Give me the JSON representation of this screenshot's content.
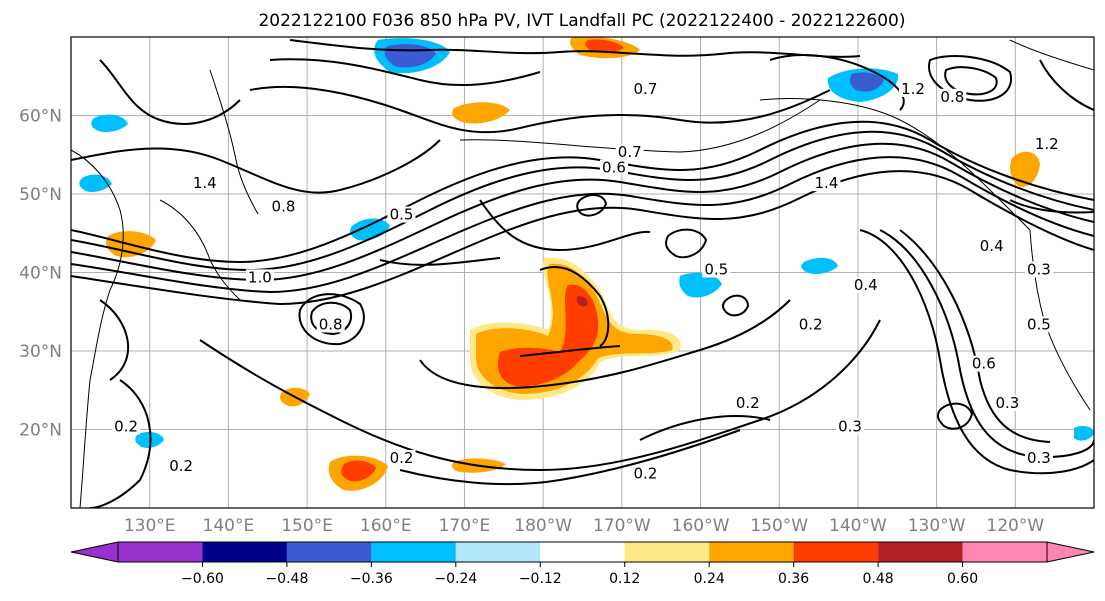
{
  "title": "2022122100 F036 850 hPa PV, IVT Landfall PC (2022122400 - 2022122600)",
  "map": {
    "lon_range": [
      120,
      250
    ],
    "lat_range": [
      10,
      70
    ],
    "lon_ticks": [
      {
        "value": 130,
        "label": "130°E"
      },
      {
        "value": 140,
        "label": "140°E"
      },
      {
        "value": 150,
        "label": "150°E"
      },
      {
        "value": 160,
        "label": "160°E"
      },
      {
        "value": 170,
        "label": "170°E"
      },
      {
        "value": 180,
        "label": "180°W"
      },
      {
        "value": 190,
        "label": "170°W"
      },
      {
        "value": 200,
        "label": "160°W"
      },
      {
        "value": 210,
        "label": "150°W"
      },
      {
        "value": 220,
        "label": "140°W"
      },
      {
        "value": 230,
        "label": "130°W"
      },
      {
        "value": 240,
        "label": "120°W"
      }
    ],
    "lat_ticks": [
      {
        "value": 20,
        "label": "20°N"
      },
      {
        "value": 30,
        "label": "30°N"
      },
      {
        "value": 40,
        "label": "40°N"
      },
      {
        "value": 50,
        "label": "50°N"
      },
      {
        "value": 60,
        "label": "60°N"
      }
    ],
    "grid": true,
    "contour_labels": [
      {
        "lon": 137,
        "lat": 51,
        "text": "1.4"
      },
      {
        "lon": 147,
        "lat": 48,
        "text": "0.8"
      },
      {
        "lon": 162,
        "lat": 47,
        "text": "0.5"
      },
      {
        "lon": 144,
        "lat": 39,
        "text": "1.0"
      },
      {
        "lon": 153,
        "lat": 33,
        "text": "0.8"
      },
      {
        "lon": 193,
        "lat": 63,
        "text": "0.7"
      },
      {
        "lon": 191,
        "lat": 55,
        "text": "0.7"
      },
      {
        "lon": 189,
        "lat": 53,
        "text": "0.6"
      },
      {
        "lon": 216,
        "lat": 51,
        "text": "1.4"
      },
      {
        "lon": 202,
        "lat": 40,
        "text": "0.5"
      },
      {
        "lon": 221,
        "lat": 38,
        "text": "0.4"
      },
      {
        "lon": 214,
        "lat": 33,
        "text": "0.2"
      },
      {
        "lon": 206,
        "lat": 23,
        "text": "0.2"
      },
      {
        "lon": 219,
        "lat": 20,
        "text": "0.3"
      },
      {
        "lon": 193,
        "lat": 14,
        "text": "0.2"
      },
      {
        "lon": 162,
        "lat": 16,
        "text": "0.2"
      },
      {
        "lon": 134,
        "lat": 15,
        "text": "0.2"
      },
      {
        "lon": 127,
        "lat": 20,
        "text": "0.2"
      },
      {
        "lon": 227,
        "lat": 63,
        "text": "1.2"
      },
      {
        "lon": 232,
        "lat": 62,
        "text": "0.8"
      },
      {
        "lon": 244,
        "lat": 56,
        "text": "1.2"
      },
      {
        "lon": 237,
        "lat": 43,
        "text": "0.4"
      },
      {
        "lon": 243,
        "lat": 40,
        "text": "0.3"
      },
      {
        "lon": 243,
        "lat": 33,
        "text": "0.5"
      },
      {
        "lon": 236,
        "lat": 28,
        "text": "0.6"
      },
      {
        "lon": 239,
        "lat": 23,
        "text": "0.3"
      },
      {
        "lon": 243,
        "lat": 16,
        "text": "0.3"
      }
    ]
  },
  "colorbar": {
    "ticks": [
      "−0.60",
      "−0.48",
      "−0.36",
      "−0.24",
      "−0.12",
      "0.12",
      "0.24",
      "0.36",
      "0.48",
      "0.60"
    ],
    "colors": [
      "#9932cc",
      "#00008b",
      "#3a5bd1",
      "#00bfff",
      "#b3e5fc",
      "#ffffff",
      "#ffe987",
      "#ffa500",
      "#ff3d00",
      "#b22222",
      "#ff85b3"
    ]
  }
}
